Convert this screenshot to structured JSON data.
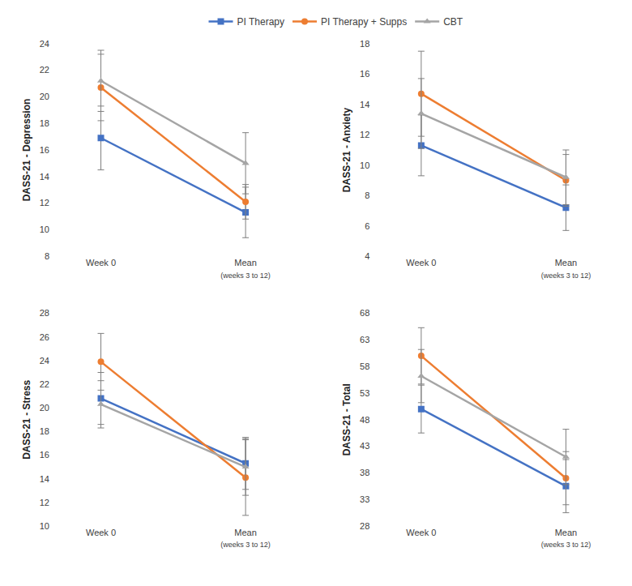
{
  "chart_data": [
    {
      "type": "line",
      "y_label": "DASS-21 - Depression",
      "categories": [
        "Week 0",
        "Mean (weeks 3 to 12)"
      ],
      "ylim": [
        8,
        24
      ],
      "yticks": [
        8,
        10,
        12,
        14,
        16,
        18,
        20,
        22,
        24
      ],
      "grid": false,
      "legend": "top",
      "series": [
        {
          "name": "PI Therapy",
          "color": "#4472c4",
          "marker": "square",
          "values": [
            16.9,
            11.3
          ],
          "error": [
            2.4,
            1.9
          ]
        },
        {
          "name": "PI Therapy + Supps",
          "color": "#ed7d31",
          "marker": "circle",
          "values": [
            20.7,
            12.1
          ],
          "error": [
            2.5,
            1.3
          ]
        },
        {
          "name": "CBT",
          "color": "#a5a5a5",
          "marker": "triangle-up",
          "values": [
            21.2,
            15.0
          ],
          "error": [
            2.3,
            2.3
          ]
        }
      ]
    },
    {
      "type": "line",
      "y_label": "DASS-21 - Anxiety",
      "categories": [
        "Week 0",
        "Mean (weeks 3 to 12)"
      ],
      "ylim": [
        4,
        18
      ],
      "yticks": [
        4,
        6,
        8,
        10,
        12,
        14,
        16,
        18
      ],
      "grid": false,
      "legend": "top",
      "series": [
        {
          "name": "PI Therapy",
          "color": "#4472c4",
          "marker": "square",
          "values": [
            11.3,
            7.2
          ],
          "error": [
            2.0,
            1.5
          ]
        },
        {
          "name": "PI Therapy + Supps",
          "color": "#ed7d31",
          "marker": "circle",
          "values": [
            14.7,
            9.0
          ],
          "error": [
            2.8,
            1.7
          ]
        },
        {
          "name": "CBT",
          "color": "#a5a5a5",
          "marker": "triangle-up",
          "values": [
            13.4,
            9.2
          ],
          "error": [
            2.3,
            1.8
          ]
        }
      ]
    },
    {
      "type": "line",
      "y_label": "DASS-21 - Stress",
      "categories": [
        "Week 0",
        "Mean (weeks 3 to 12)"
      ],
      "ylim": [
        10,
        28
      ],
      "yticks": [
        10,
        12,
        14,
        16,
        18,
        20,
        22,
        24,
        26,
        28
      ],
      "grid": false,
      "legend": "top",
      "series": [
        {
          "name": "PI Therapy",
          "color": "#4472c4",
          "marker": "square",
          "values": [
            20.8,
            15.3
          ],
          "error": [
            2.2,
            2.2
          ]
        },
        {
          "name": "PI Therapy + Supps",
          "color": "#ed7d31",
          "marker": "circle",
          "values": [
            23.9,
            14.1
          ],
          "error": [
            2.4,
            3.2
          ]
        },
        {
          "name": "CBT",
          "color": "#a5a5a5",
          "marker": "triangle-up",
          "values": [
            20.3,
            15.0
          ],
          "error": [
            2.0,
            2.4
          ]
        }
      ]
    },
    {
      "type": "line",
      "y_label": "DASS-21 - Total",
      "categories": [
        "Week 0",
        "Mean (weeks 3 to 12)"
      ],
      "ylim": [
        28,
        68
      ],
      "yticks": [
        28,
        33,
        38,
        43,
        48,
        53,
        58,
        63,
        68
      ],
      "grid": false,
      "legend": "top",
      "series": [
        {
          "name": "PI Therapy",
          "color": "#4472c4",
          "marker": "square",
          "values": [
            50.0,
            35.5
          ],
          "error": [
            4.5,
            5.0
          ]
        },
        {
          "name": "PI Therapy + Supps",
          "color": "#ed7d31",
          "marker": "circle",
          "values": [
            60.0,
            37.0
          ],
          "error": [
            5.3,
            5.0
          ]
        },
        {
          "name": "CBT",
          "color": "#a5a5a5",
          "marker": "triangle-up",
          "values": [
            56.2,
            41.0
          ],
          "error": [
            5.0,
            5.2
          ]
        }
      ]
    }
  ]
}
